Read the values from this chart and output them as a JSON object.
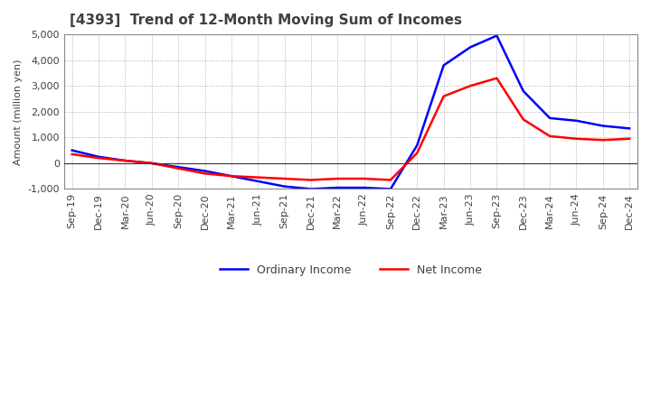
{
  "title": "[4393]  Trend of 12-Month Moving Sum of Incomes",
  "ylabel": "Amount (million yen)",
  "xlabels": [
    "Sep-19",
    "Dec-19",
    "Mar-20",
    "Jun-20",
    "Sep-20",
    "Dec-20",
    "Mar-21",
    "Jun-21",
    "Sep-21",
    "Dec-21",
    "Mar-22",
    "Jun-22",
    "Sep-22",
    "Dec-22",
    "Mar-23",
    "Jun-23",
    "Sep-23",
    "Dec-23",
    "Mar-24",
    "Jun-24",
    "Sep-24",
    "Dec-24"
  ],
  "ordinary_income": [
    500,
    250,
    100,
    0,
    -150,
    -300,
    -500,
    -700,
    -900,
    -1000,
    -950,
    -950,
    -1000,
    700,
    3800,
    4500,
    4950,
    2800,
    1750,
    1650,
    1450,
    1350
  ],
  "net_income": [
    350,
    200,
    100,
    0,
    -200,
    -400,
    -500,
    -550,
    -600,
    -650,
    -600,
    -600,
    -650,
    400,
    2600,
    3000,
    3300,
    1700,
    1050,
    950,
    900,
    950
  ],
  "ordinary_color": "#0000FF",
  "net_color": "#FF0000",
  "ylim": [
    -1000,
    5000
  ],
  "yticks": [
    -1000,
    0,
    1000,
    2000,
    3000,
    4000,
    5000
  ],
  "background_color": "#FFFFFF",
  "plot_bg_color": "#FFFFFF",
  "grid_color": "#AAAAAA",
  "text_color": "#404040",
  "title_fontsize": 11,
  "axis_fontsize": 8,
  "label_fontsize": 8,
  "legend_fontsize": 9
}
